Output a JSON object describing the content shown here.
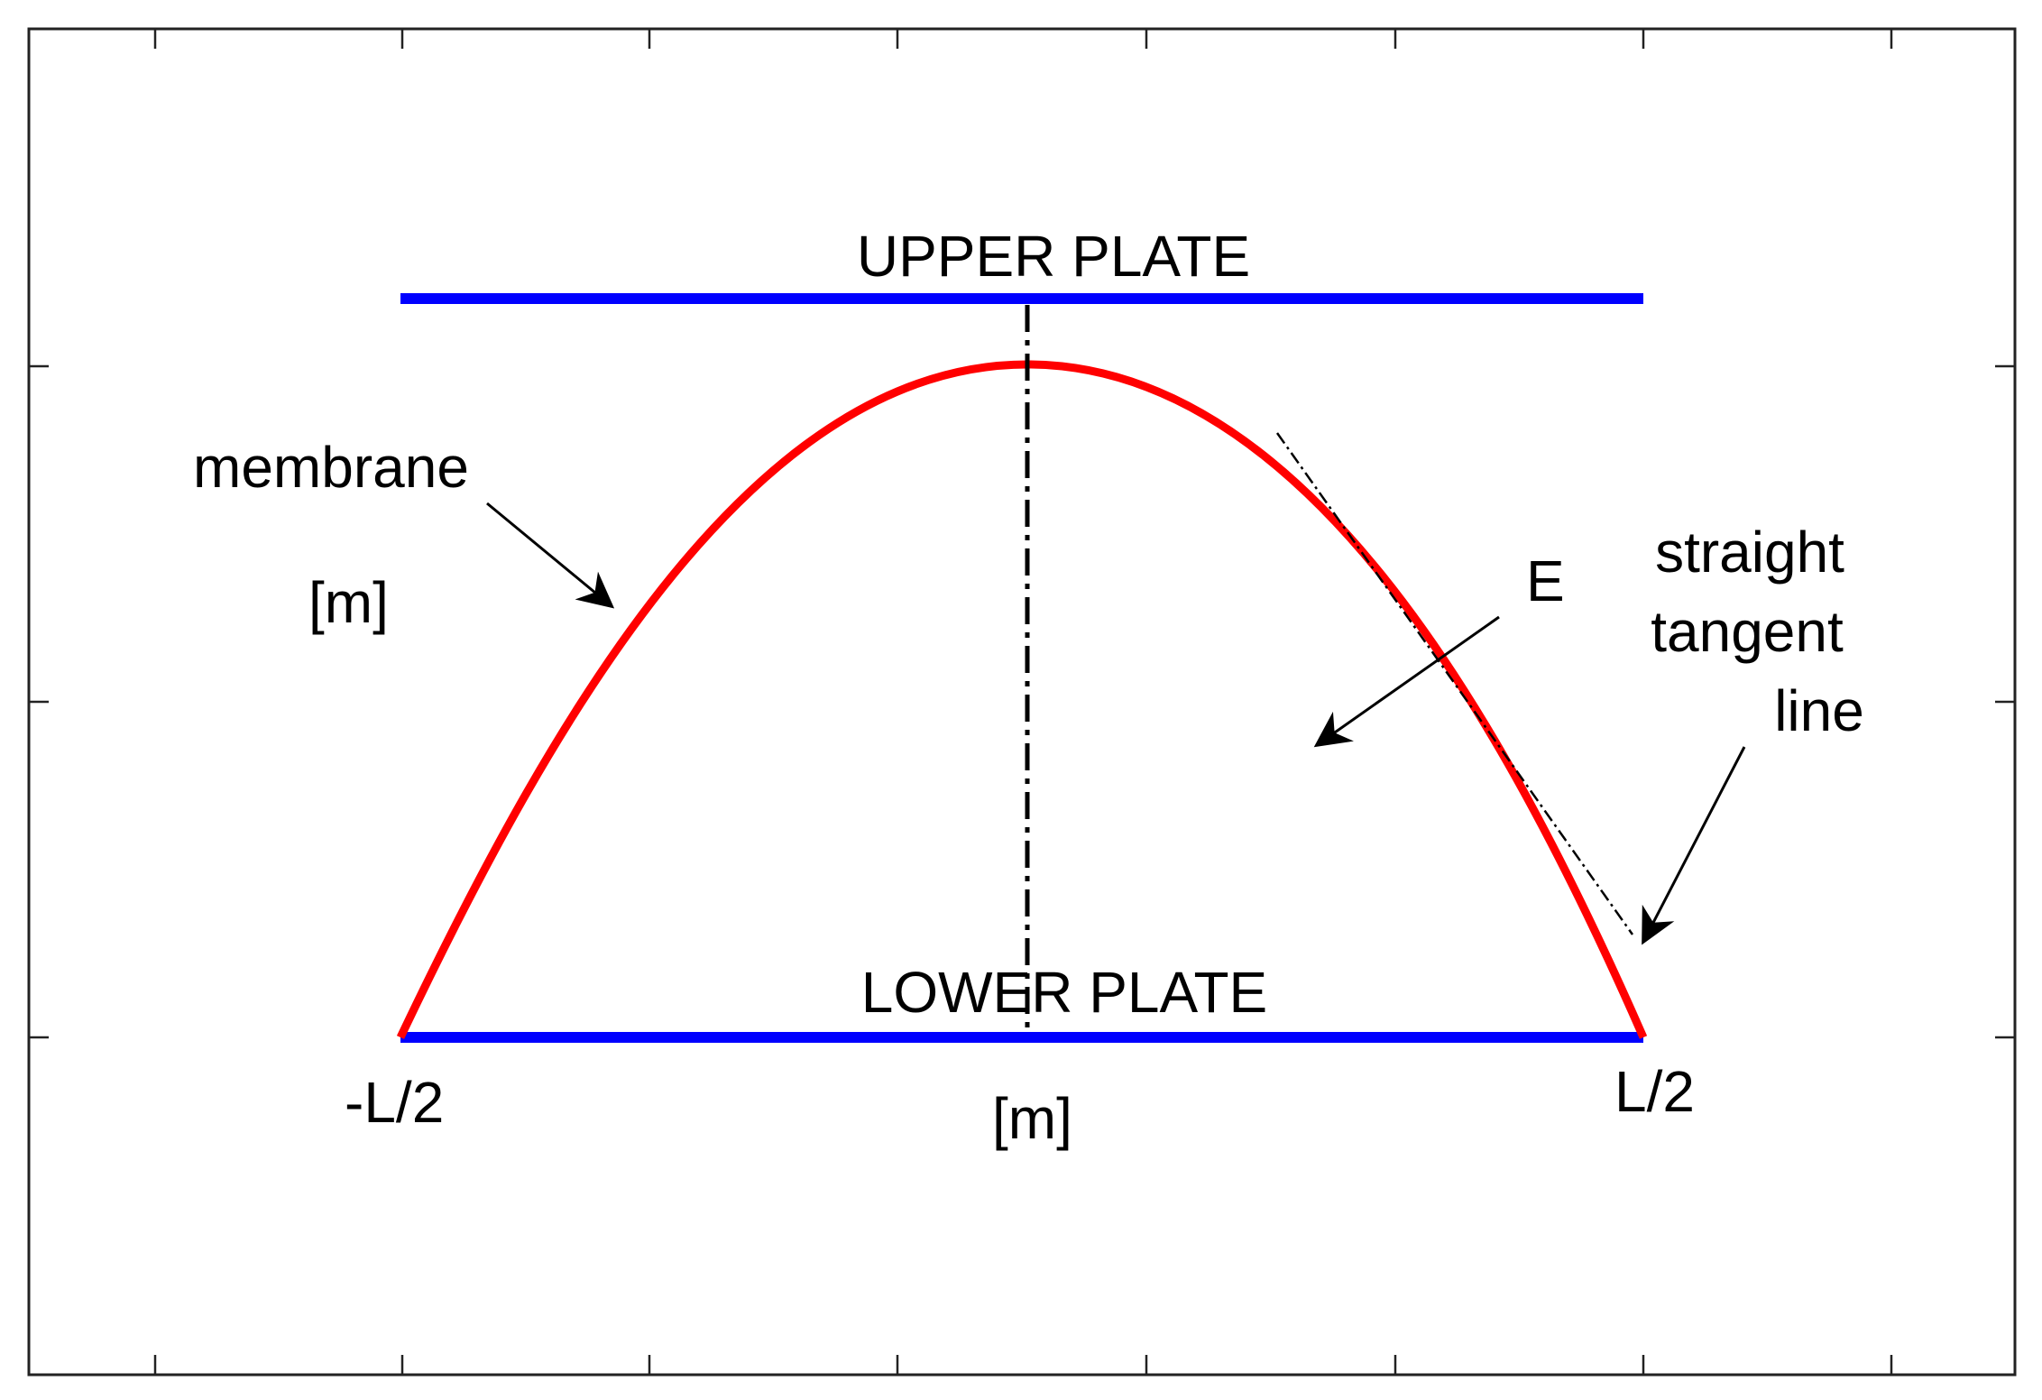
{
  "labels": {
    "upper_plate": "UPPER PLATE",
    "lower_plate": "LOWER PLATE",
    "membrane": "membrane",
    "y_unit": "[m]",
    "x_unit": "[m]",
    "field": "E",
    "tangent_line_1": "straight",
    "tangent_line_2": "tangent",
    "tangent_line_3": "line",
    "left_end": "-L/2",
    "right_end": "L/2"
  },
  "colors": {
    "plate": "#0000ff",
    "membrane": "#ff0000",
    "axis": "#000000",
    "background": "#ffffff"
  }
}
